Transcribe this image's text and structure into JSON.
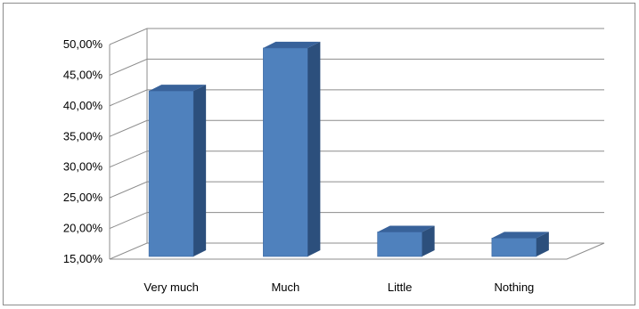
{
  "chart_data": {
    "type": "bar",
    "style": "3d-column",
    "title": "",
    "xlabel": "",
    "ylabel": "",
    "categories": [
      "Very much",
      "Much",
      "Little",
      "Nothing"
    ],
    "values": [
      42.0,
      49.0,
      19.0,
      18.0
    ],
    "ylim": [
      15,
      50
    ],
    "ytick_values": [
      15,
      20,
      25,
      30,
      35,
      40,
      45,
      50
    ],
    "yticks": [
      "15,00%",
      "20,00%",
      "25,00%",
      "30,00%",
      "35,00%",
      "40,00%",
      "45,00%",
      "50,00%"
    ],
    "grid": true,
    "legend": "none",
    "colors": {
      "bar_front": "#4f81bd",
      "bar_side": "#2c4f7c",
      "bar_top": "#38629a",
      "grid": "#8c8c8c"
    }
  }
}
